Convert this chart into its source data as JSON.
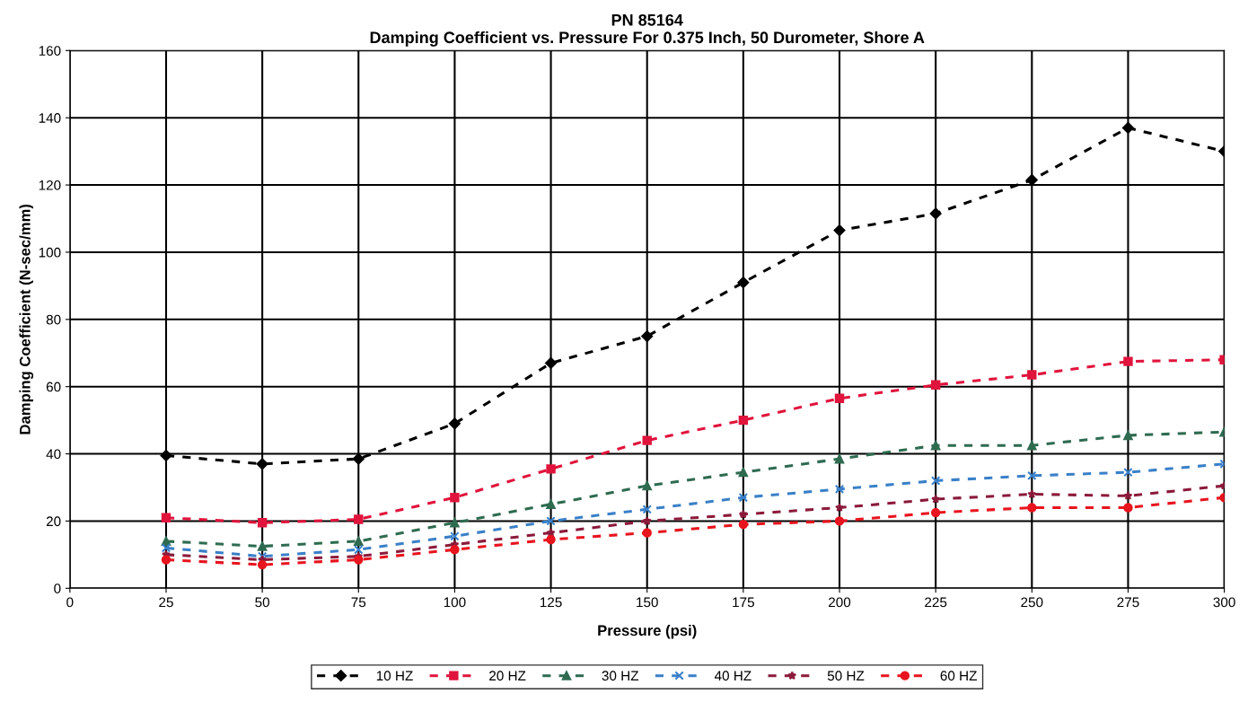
{
  "chart_data": {
    "type": "line",
    "title": "PN 85164\nDamping Coefficient vs. Pressure For 0.375 Inch, 50 Durometer, Shore A",
    "xlabel": "Pressure (psi)",
    "ylabel": "Damping Coefficient (N-sec/mm)",
    "x": [
      25,
      50,
      75,
      100,
      125,
      150,
      175,
      200,
      225,
      250,
      275,
      300
    ],
    "series": [
      {
        "name": "10 HZ",
        "color": "#000000",
        "marker": "diamond",
        "values": [
          39.5,
          37,
          38.5,
          49,
          67,
          75,
          91,
          106.5,
          111.5,
          121.5,
          137,
          130
        ]
      },
      {
        "name": "20 HZ",
        "color": "#e0143c",
        "marker": "square",
        "values": [
          21,
          19.5,
          20.5,
          27,
          35.5,
          44,
          50,
          56.5,
          60.5,
          63.5,
          67.5,
          68
        ]
      },
      {
        "name": "30 HZ",
        "color": "#2e6b50",
        "marker": "triangle",
        "values": [
          14,
          12.5,
          14,
          19.5,
          25,
          30.5,
          34.5,
          38.5,
          42.5,
          42.5,
          45.5,
          46.5
        ]
      },
      {
        "name": "40 HZ",
        "color": "#3a80c8",
        "marker": "cross",
        "values": [
          12,
          9.5,
          11.5,
          15.5,
          20,
          23.5,
          27,
          29.5,
          32,
          33.5,
          34.5,
          37
        ]
      },
      {
        "name": "50 HZ",
        "color": "#8b1a3a",
        "marker": "star",
        "values": [
          10,
          8.5,
          9.5,
          13,
          16.5,
          20,
          22,
          24,
          26.5,
          28,
          27.5,
          30.5
        ]
      },
      {
        "name": "60 HZ",
        "color": "#e8141e",
        "marker": "circle",
        "values": [
          8.5,
          7,
          8.5,
          11.5,
          14.5,
          16.5,
          19,
          20,
          22.5,
          24,
          24,
          27
        ]
      }
    ],
    "xlim": [
      0,
      300
    ],
    "xticks": [
      0,
      25,
      50,
      75,
      100,
      125,
      150,
      175,
      200,
      225,
      250,
      275,
      300
    ],
    "ylim": [
      0,
      160
    ],
    "yticks": [
      0,
      20,
      40,
      60,
      80,
      100,
      120,
      140,
      160
    ],
    "grid": true,
    "legend": "bottom",
    "line_style": "dashed"
  }
}
